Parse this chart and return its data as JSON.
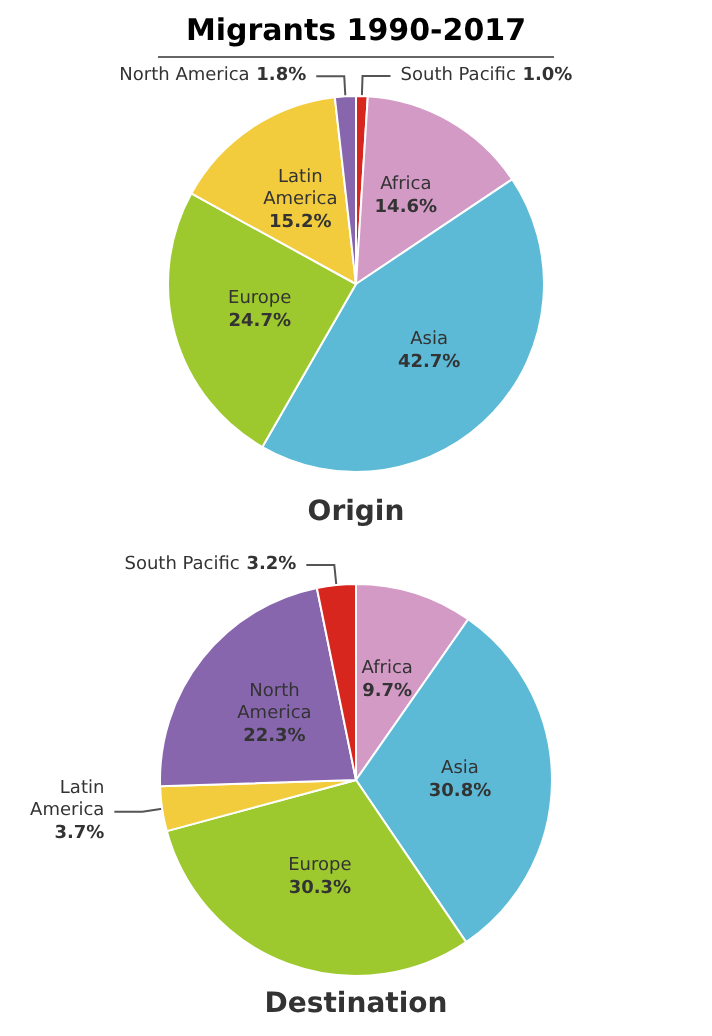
{
  "chart_data": [
    {
      "type": "pie",
      "title": "Migrants 1990-2017",
      "subtitle": "Origin",
      "categories": [
        "South Pacific",
        "Africa",
        "Asia",
        "Europe",
        "Latin America",
        "North America"
      ],
      "values": [
        1.0,
        14.6,
        42.7,
        24.7,
        15.2,
        1.8
      ],
      "value_labels": [
        "1.0%",
        "14.6%",
        "42.7%",
        "24.7%",
        "15.2%",
        "1.8%"
      ],
      "colors": [
        "#d7261e",
        "#d49ac6",
        "#5cbad6",
        "#9dc92e",
        "#f2cc3c",
        "#8766ae"
      ]
    },
    {
      "type": "pie",
      "subtitle": "Destination",
      "categories": [
        "Africa",
        "Asia",
        "Europe",
        "Latin America",
        "North America",
        "South Pacific"
      ],
      "values": [
        9.7,
        30.8,
        30.3,
        3.7,
        22.3,
        3.2
      ],
      "value_labels": [
        "9.7%",
        "30.8%",
        "30.3%",
        "3.7%",
        "22.3%",
        "3.2%"
      ],
      "colors": [
        "#d49ac6",
        "#5cbad6",
        "#9dc92e",
        "#f2cc3c",
        "#8766ae",
        "#d7261e"
      ]
    }
  ]
}
